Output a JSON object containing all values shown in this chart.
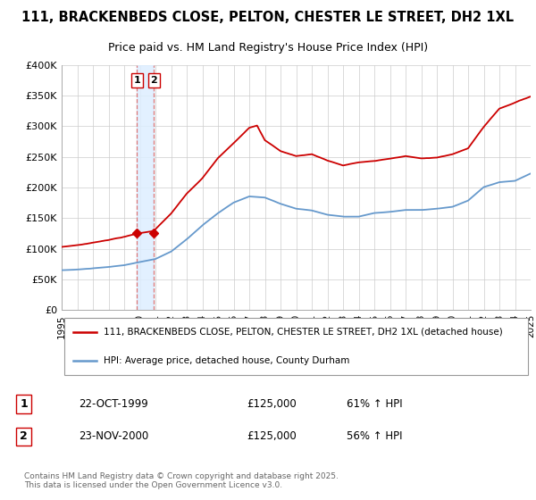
{
  "title": "111, BRACKENBEDS CLOSE, PELTON, CHESTER LE STREET, DH2 1XL",
  "subtitle": "Price paid vs. HM Land Registry's House Price Index (HPI)",
  "title_fontsize": 10.5,
  "subtitle_fontsize": 9,
  "red_label": "111, BRACKENBEDS CLOSE, PELTON, CHESTER LE STREET, DH2 1XL (detached house)",
  "blue_label": "HPI: Average price, detached house, County Durham",
  "transaction1_date": "22-OCT-1999",
  "transaction1_price": "£125,000",
  "transaction1_hpi": "61% ↑ HPI",
  "transaction2_date": "23-NOV-2000",
  "transaction2_price": "£125,000",
  "transaction2_hpi": "56% ↑ HPI",
  "footer": "Contains HM Land Registry data © Crown copyright and database right 2025.\nThis data is licensed under the Open Government Licence v3.0.",
  "red_color": "#cc0000",
  "blue_color": "#6699cc",
  "background_color": "#ffffff",
  "grid_color": "#cccccc",
  "vline_color": "#dd7777",
  "vband_color": "#ddeeff",
  "marker_color": "#cc0000",
  "ylim_max": 400000,
  "yticks": [
    0,
    50000,
    100000,
    150000,
    200000,
    250000,
    300000,
    350000,
    400000
  ],
  "ytick_labels": [
    "£0",
    "£50K",
    "£100K",
    "£150K",
    "£200K",
    "£250K",
    "£300K",
    "£350K",
    "£400K"
  ],
  "transaction1_x": 1999.81,
  "transaction2_x": 2000.9,
  "transaction1_y": 125000,
  "transaction2_y": 125000,
  "xmin": 1995,
  "xmax": 2025
}
